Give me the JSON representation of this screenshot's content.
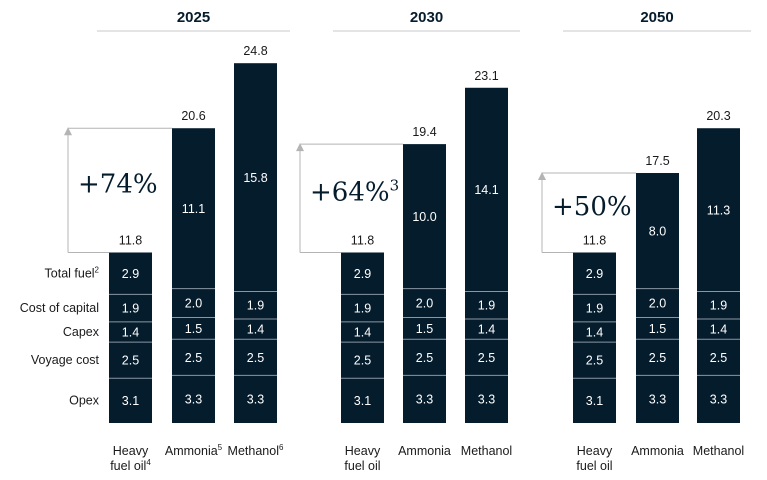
{
  "chart_data": {
    "type": "bar",
    "stacked": true,
    "segments": [
      "Total fuel",
      "Cost of capital",
      "Capex",
      "Voyage cost",
      "Opex"
    ],
    "segment_notes": {
      "Total fuel": "2"
    },
    "panels": [
      {
        "title": "2025",
        "change_label": "+74%",
        "change_note": "",
        "bars": [
          {
            "label_lines": [
              "Heavy",
              "fuel oil"
            ],
            "note": "4",
            "total": "11.8",
            "values": [
              2.9,
              1.9,
              1.4,
              2.5,
              3.1
            ]
          },
          {
            "label_lines": [
              "Ammonia"
            ],
            "note": "5",
            "total": "20.6",
            "values": [
              11.1,
              2.0,
              1.5,
              2.5,
              3.3
            ]
          },
          {
            "label_lines": [
              "Methanol"
            ],
            "note": "6",
            "total": "24.8",
            "values": [
              15.8,
              1.9,
              1.4,
              2.5,
              3.3
            ]
          }
        ]
      },
      {
        "title": "2030",
        "change_label": "+64%",
        "change_note": "3",
        "bars": [
          {
            "label_lines": [
              "Heavy",
              "fuel oil"
            ],
            "note": "",
            "total": "11.8",
            "values": [
              2.9,
              1.9,
              1.4,
              2.5,
              3.1
            ]
          },
          {
            "label_lines": [
              "Ammonia"
            ],
            "note": "",
            "total": "19.4",
            "values": [
              10.0,
              2.0,
              1.5,
              2.5,
              3.3
            ]
          },
          {
            "label_lines": [
              "Methanol"
            ],
            "note": "",
            "total": "23.1",
            "values": [
              14.1,
              1.9,
              1.4,
              2.5,
              3.3
            ]
          }
        ]
      },
      {
        "title": "2050",
        "change_label": "+50%",
        "change_note": "",
        "bars": [
          {
            "label_lines": [
              "Heavy",
              "fuel oil"
            ],
            "note": "",
            "total": "11.8",
            "values": [
              2.9,
              1.9,
              1.4,
              2.5,
              3.1
            ]
          },
          {
            "label_lines": [
              "Ammonia"
            ],
            "note": "",
            "total": "17.5",
            "values": [
              8.0,
              2.0,
              1.5,
              2.5,
              3.3
            ]
          },
          {
            "label_lines": [
              "Methanol"
            ],
            "note": "",
            "total": "20.3",
            "values": [
              11.3,
              1.9,
              1.4,
              2.5,
              3.3
            ]
          }
        ]
      }
    ]
  },
  "colors": {
    "bar": "#051c2c",
    "divider": "#8a96a3",
    "header_rule": "#c8c8c8",
    "arrow": "#b4b4b4"
  }
}
